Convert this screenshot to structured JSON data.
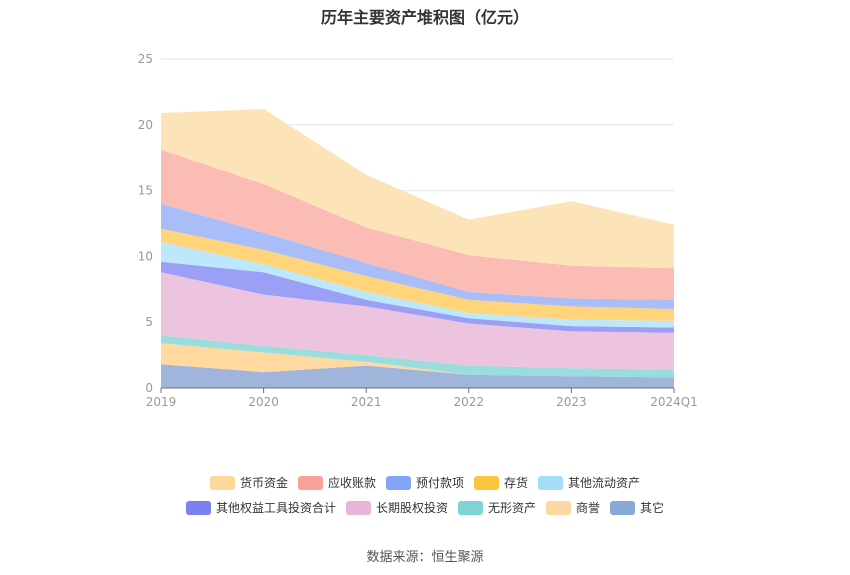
{
  "source_note": "数据来源：恒生聚源",
  "chart_data": {
    "type": "area",
    "stacked": true,
    "title": "历年主要资产堆积图（亿元）",
    "xlabel": "",
    "ylabel": "",
    "categories": [
      "2019",
      "2020",
      "2021",
      "2022",
      "2023",
      "2024Q1"
    ],
    "ylim": [
      0,
      25
    ],
    "yticks": [
      0,
      5,
      10,
      15,
      20,
      25
    ],
    "grid": true,
    "legend_position": "bottom",
    "series": [
      {
        "name": "其它",
        "color": "#9fb5dc",
        "values": [
          1.8,
          1.2,
          1.7,
          1.0,
          0.9,
          0.8
        ]
      },
      {
        "name": "商誉",
        "color": "#ffd9a0",
        "values": [
          1.6,
          1.5,
          0.3,
          0.0,
          0.0,
          0.0
        ]
      },
      {
        "name": "无形资产",
        "color": "#9bdcdc",
        "values": [
          0.6,
          0.5,
          0.5,
          0.7,
          0.6,
          0.6
        ]
      },
      {
        "name": "长期股权投资",
        "color": "#edc4e0",
        "values": [
          4.8,
          3.9,
          3.7,
          3.2,
          2.8,
          2.8
        ]
      },
      {
        "name": "其他权益工具投资合计",
        "color": "#9b9ff5",
        "values": [
          0.8,
          1.7,
          0.5,
          0.4,
          0.4,
          0.4
        ]
      },
      {
        "name": "其他流动资产",
        "color": "#bde8fb",
        "values": [
          1.5,
          0.6,
          0.6,
          0.4,
          0.5,
          0.5
        ]
      },
      {
        "name": "存货",
        "color": "#ffd47a",
        "values": [
          1.0,
          1.1,
          1.2,
          1.0,
          1.0,
          0.9
        ]
      },
      {
        "name": "预付款项",
        "color": "#a9bdf9",
        "values": [
          1.9,
          1.3,
          1.0,
          0.6,
          0.6,
          0.7
        ]
      },
      {
        "name": "应收账款",
        "color": "#fcbcb6",
        "values": [
          4.1,
          3.7,
          2.7,
          2.8,
          2.5,
          2.4
        ]
      },
      {
        "name": "货币资金",
        "color": "#fde4b8",
        "values": [
          2.8,
          5.7,
          4.0,
          2.7,
          4.9,
          3.3
        ]
      }
    ],
    "legend_rows": [
      [
        {
          "name": "货币资金",
          "color": "#fcd89b"
        },
        {
          "name": "应收账款",
          "color": "#f7a198"
        },
        {
          "name": "预付款项",
          "color": "#84a4f8"
        },
        {
          "name": "存货",
          "color": "#fbc53f"
        },
        {
          "name": "其他流动资产",
          "color": "#a3ddf8"
        }
      ],
      [
        {
          "name": "其他权益工具投资合计",
          "color": "#7b80ef"
        },
        {
          "name": "长期股权投资",
          "color": "#e6b5d8"
        },
        {
          "name": "无形资产",
          "color": "#7fd3d3"
        },
        {
          "name": "商誉",
          "color": "#fdd8a0"
        },
        {
          "name": "其它",
          "color": "#8aa8d8"
        }
      ]
    ]
  }
}
